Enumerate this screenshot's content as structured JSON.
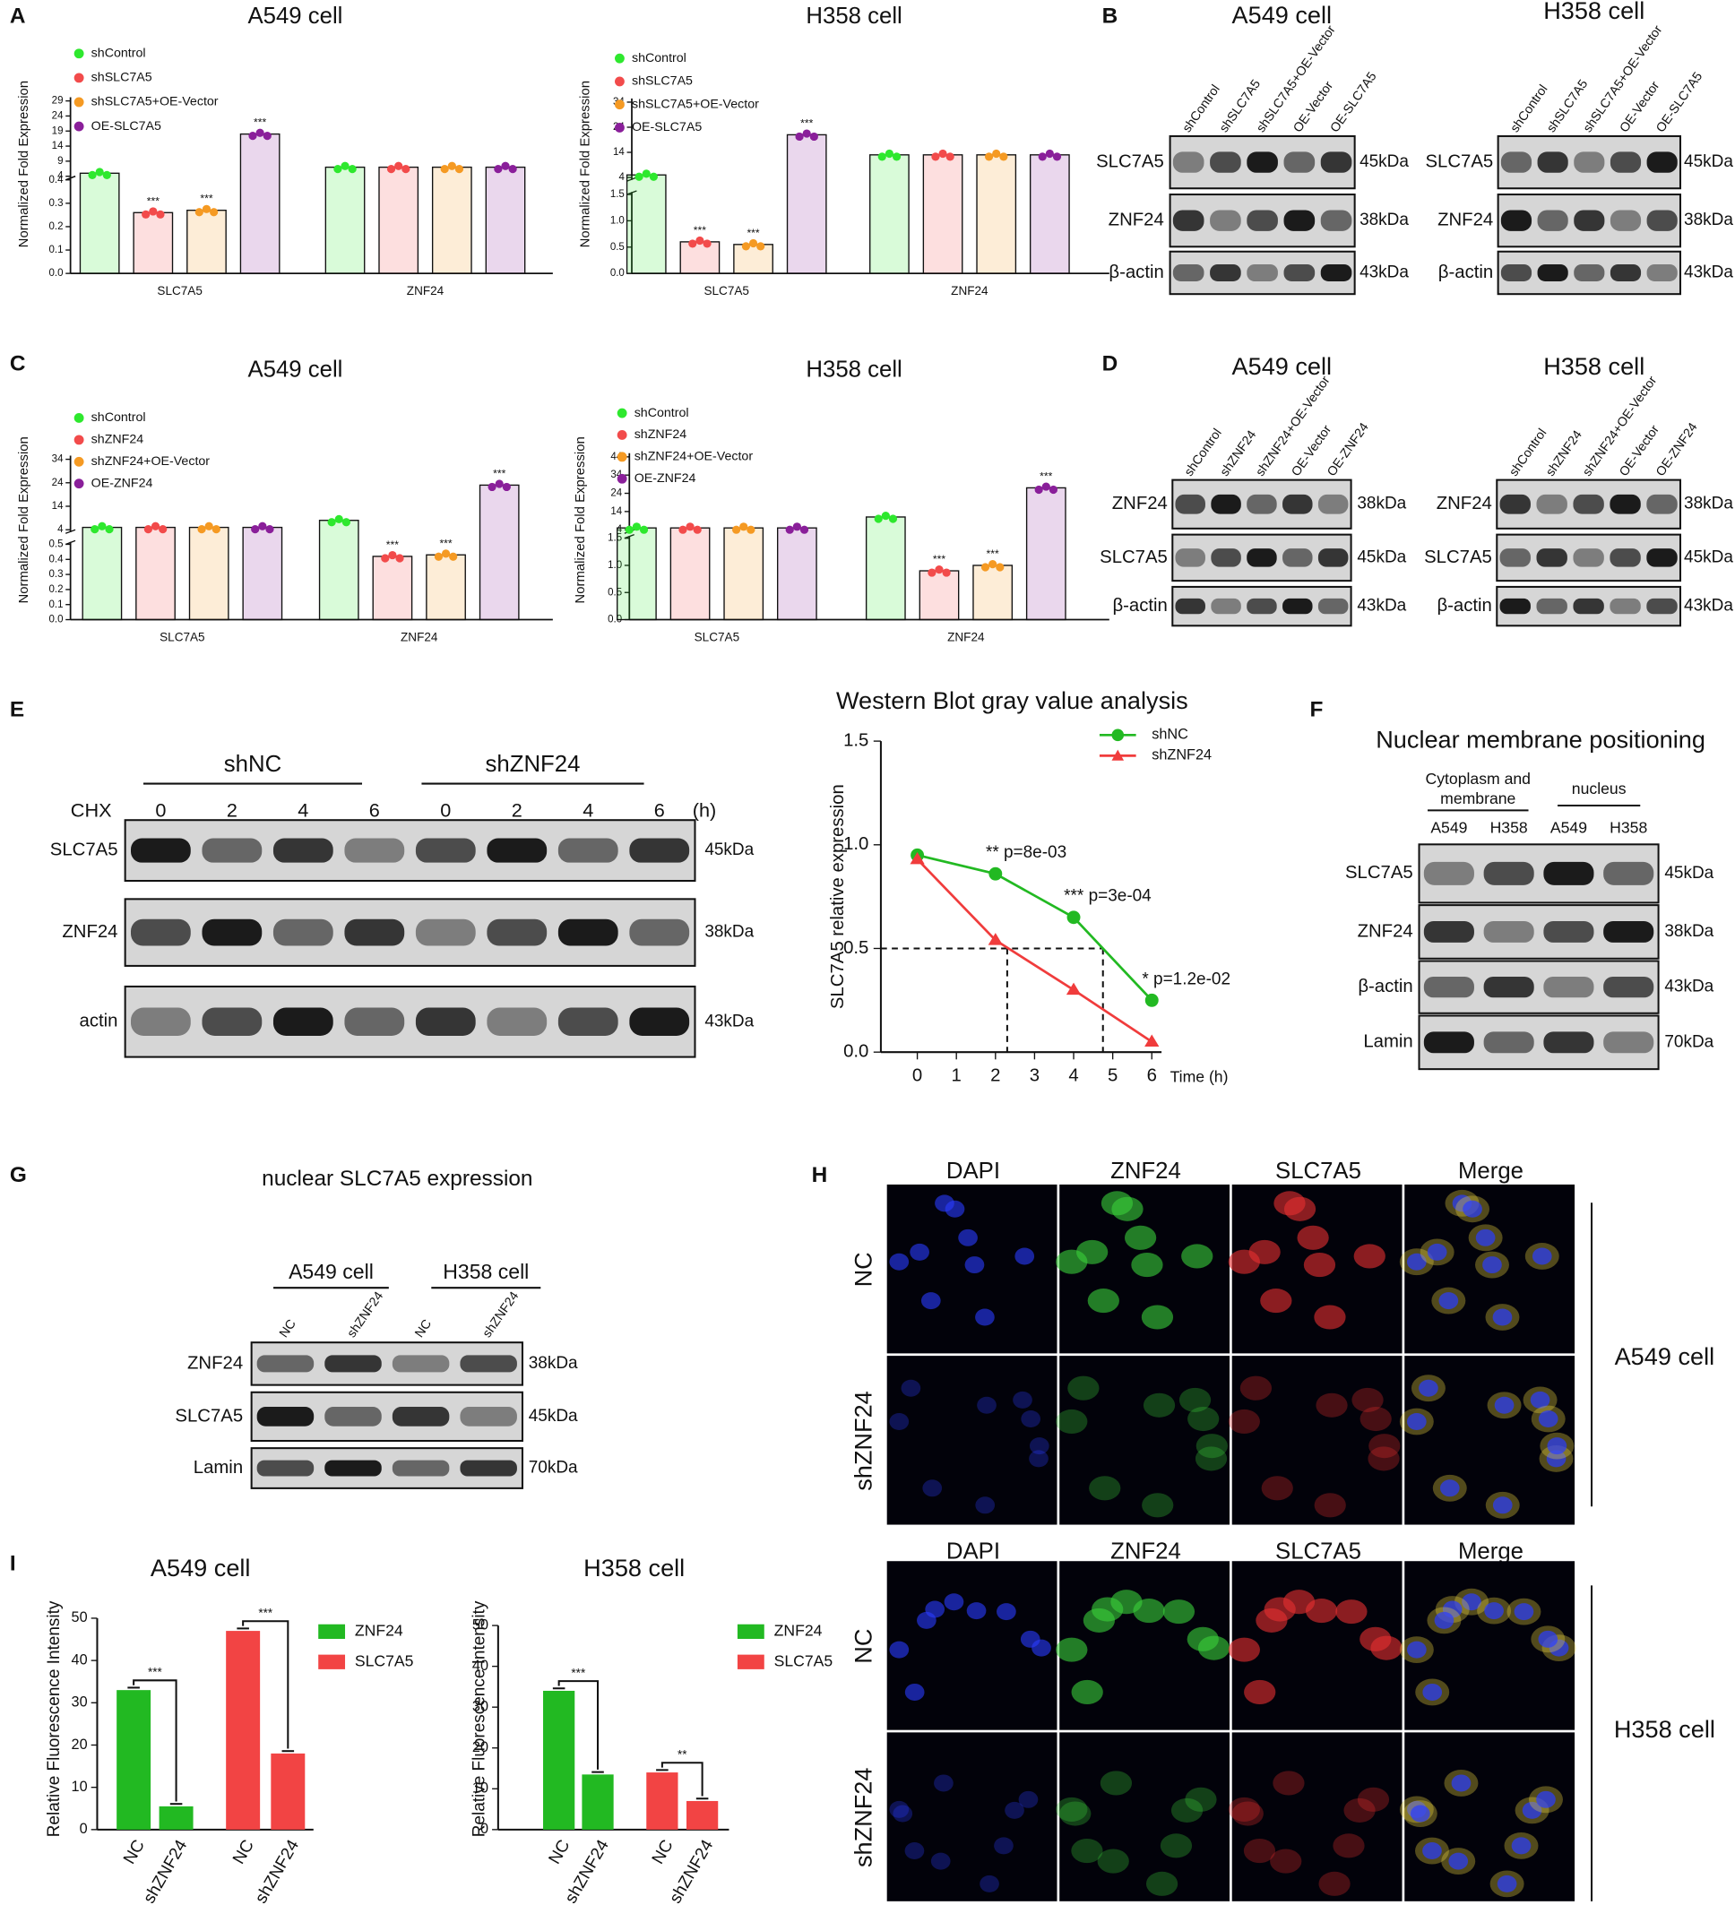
{
  "panel_labels": [
    "A",
    "B",
    "C",
    "D",
    "E",
    "F",
    "G",
    "H",
    "I"
  ],
  "chart_data": [
    {
      "type": "broken_bar",
      "title": "A549 cell",
      "ylabel": "Normalized Fold Expression",
      "categories": [
        "SLC7A5",
        "ZNF24"
      ],
      "ylim": [
        0,
        29
      ],
      "axis_break": [
        0.4,
        4
      ],
      "yticks": [
        {
          "value": 0,
          "label": "0.0"
        },
        0.1,
        0.2,
        0.3,
        0.4,
        4,
        9,
        14,
        19,
        24,
        29
      ],
      "series": [
        {
          "name": "shControl",
          "color": "#2ee82e",
          "values": [
            5,
            7
          ]
        },
        {
          "name": "shSLC7A5",
          "color": "#f24b4b",
          "values": [
            0.26,
            7
          ],
          "significance": [
            "***",
            null
          ]
        },
        {
          "name": "shSLC7A5+OE-Vector",
          "color": "#f59a23",
          "values": [
            0.27,
            7
          ],
          "significance": [
            "***",
            null
          ]
        },
        {
          "name": "OE-SLC7A5",
          "color": "#8a1f9a",
          "values": [
            18,
            7
          ],
          "significance": [
            "***",
            null
          ]
        }
      ]
    },
    {
      "type": "broken_bar",
      "title": "H358 cell",
      "ylabel": "Normalized Fold Expression",
      "categories": [
        "SLC7A5",
        "ZNF24"
      ],
      "ylim": [
        0,
        34
      ],
      "axis_break": [
        1.5,
        4
      ],
      "yticks": [
        {
          "value": 0,
          "label": "0.0"
        },
        0.5,
        {
          "value": 1,
          "label": "1.0"
        },
        1.5,
        4,
        14,
        24,
        34
      ],
      "series": [
        {
          "name": "shControl",
          "color": "#2ee82e",
          "values": [
            5,
            13
          ]
        },
        {
          "name": "shSLC7A5",
          "color": "#f24b4b",
          "values": [
            0.6,
            13
          ],
          "significance": [
            "***",
            null
          ]
        },
        {
          "name": "shSLC7A5+OE-Vector",
          "color": "#f59a23",
          "values": [
            0.55,
            13
          ],
          "significance": [
            "***",
            null
          ]
        },
        {
          "name": "OE-SLC7A5",
          "color": "#8a1f9a",
          "values": [
            21,
            13
          ],
          "significance": [
            "***",
            null
          ]
        }
      ]
    },
    {
      "type": "broken_bar",
      "title": "A549 cell",
      "ylabel": "Normalized Fold Expression",
      "categories": [
        "SLC7A5",
        "ZNF24"
      ],
      "ylim": [
        0,
        34
      ],
      "axis_break": [
        0.5,
        4
      ],
      "yticks": [
        {
          "value": 0,
          "label": "0.0"
        },
        0.1,
        0.2,
        0.3,
        0.4,
        0.5,
        4,
        14,
        24,
        34
      ],
      "series": [
        {
          "name": "shControl",
          "color": "#2ee82e",
          "values": [
            5,
            8
          ]
        },
        {
          "name": "shZNF24",
          "color": "#f24b4b",
          "values": [
            5,
            0.42
          ],
          "significance": [
            null,
            "***"
          ]
        },
        {
          "name": "shZNF24+OE-Vector",
          "color": "#f59a23",
          "values": [
            5,
            0.43
          ],
          "significance": [
            null,
            "***"
          ]
        },
        {
          "name": "OE-ZNF24",
          "color": "#8a1f9a",
          "values": [
            5,
            23
          ],
          "significance": [
            null,
            "***"
          ]
        }
      ]
    },
    {
      "type": "broken_bar",
      "title": "H358 cell",
      "ylabel": "Normalized Fold Expression",
      "categories": [
        "SLC7A5",
        "ZNF24"
      ],
      "ylim": [
        0,
        44
      ],
      "axis_break": [
        1.5,
        4
      ],
      "yticks": [
        {
          "value": 0,
          "label": "0.0"
        },
        0.5,
        {
          "value": 1,
          "label": "1.0"
        },
        1.5,
        4,
        14,
        24,
        34,
        44
      ],
      "series": [
        {
          "name": "shControl",
          "color": "#2ee82e",
          "values": [
            5,
            11
          ]
        },
        {
          "name": "shZNF24",
          "color": "#f24b4b",
          "values": [
            5,
            0.9
          ],
          "significance": [
            null,
            "***"
          ]
        },
        {
          "name": "shZNF24+OE-Vector",
          "color": "#f59a23",
          "values": [
            5,
            1.0
          ],
          "significance": [
            null,
            "***"
          ]
        },
        {
          "name": "OE-ZNF24",
          "color": "#8a1f9a",
          "values": [
            5,
            27
          ],
          "significance": [
            null,
            "***"
          ]
        }
      ]
    },
    {
      "type": "line",
      "title": "Western Blot gray value analysis",
      "ylabel": "SLC7A5 relative expression",
      "xlabel": "Time (h)",
      "x": [
        0,
        2,
        4,
        6
      ],
      "xlim": [
        0,
        6
      ],
      "xticks": [
        0,
        1,
        2,
        3,
        4,
        5,
        6
      ],
      "ylim": [
        0,
        1.5
      ],
      "yticks": [
        {
          "value": 0,
          "label": "0.0"
        },
        0.5,
        {
          "value": 1,
          "label": "1.0"
        },
        1.5
      ],
      "series": [
        {
          "name": "shNC",
          "color": "#22b922",
          "marker": "circle",
          "values": [
            0.95,
            0.86,
            0.65,
            0.25
          ],
          "annotations": [
            null,
            "** p=8e-03",
            "*** p=3e-04",
            "* p=1.2e-02"
          ]
        },
        {
          "name": "shZNF24",
          "color": "#f03c3c",
          "marker": "triangle",
          "values": [
            0.93,
            0.54,
            0.3,
            0.05
          ]
        }
      ],
      "reference_lines": {
        "y": 0.5,
        "x": [
          2.3,
          4.75
        ]
      }
    },
    {
      "type": "grouped_bar",
      "title": "A549 cell",
      "ylabel": "Relative Fluorescence Intensity",
      "categories": [
        "NC",
        "shZNF24"
      ],
      "ylim": [
        0,
        50
      ],
      "yticks": [
        0,
        10,
        20,
        30,
        40,
        50
      ],
      "series": [
        {
          "name": "ZNF24",
          "color": "#22b922",
          "values": [
            33,
            5.5
          ],
          "significance": "***"
        },
        {
          "name": "SLC7A5",
          "color": "#f24444",
          "values": [
            47,
            18
          ],
          "significance": "***"
        }
      ]
    },
    {
      "type": "grouped_bar",
      "title": "H358 cell",
      "ylabel": "Relative Fluorescence Intensity",
      "categories": [
        "NC",
        "shZNF24"
      ],
      "ylim": [
        0,
        50
      ],
      "yticks": [
        0,
        10,
        20,
        30,
        40,
        50
      ],
      "series": [
        {
          "name": "ZNF24",
          "color": "#22b922",
          "values": [
            34,
            13.5
          ],
          "significance": "***"
        },
        {
          "name": "SLC7A5",
          "color": "#f24444",
          "values": [
            14,
            7
          ],
          "significance": "**"
        }
      ]
    }
  ],
  "blots": [
    {
      "title": "A549 cell",
      "lanes": [
        "shControl",
        "shSLC7A5",
        "shSLC7A5+OE-Vector",
        "OE-Vector",
        "OE-SLC7A5"
      ],
      "rows": [
        {
          "label": "SLC7A5",
          "kda": "45kDa"
        },
        {
          "label": "ZNF24",
          "kda": "38kDa"
        },
        {
          "label": "β-actin",
          "kda": "43kDa"
        }
      ]
    },
    {
      "title": "H358 cell",
      "lanes": [
        "shControl",
        "shSLC7A5",
        "shSLC7A5+OE-Vector",
        "OE-Vector",
        "OE-SLC7A5"
      ],
      "rows": [
        {
          "label": "SLC7A5",
          "kda": "45kDa"
        },
        {
          "label": "ZNF24",
          "kda": "38kDa"
        },
        {
          "label": "β-actin",
          "kda": "43kDa"
        }
      ]
    },
    {
      "title": "A549 cell",
      "lanes": [
        "shControl",
        "shZNF24",
        "shZNF24+OE-Vector",
        "OE-Vector",
        "OE-ZNF24"
      ],
      "rows": [
        {
          "label": "ZNF24",
          "kda": "38kDa"
        },
        {
          "label": "SLC7A5",
          "kda": "45kDa"
        },
        {
          "label": "β-actin",
          "kda": "43kDa"
        }
      ]
    },
    {
      "title": "H358 cell",
      "lanes": [
        "shControl",
        "shZNF24",
        "shZNF24+OE-Vector",
        "OE-Vector",
        "OE-ZNF24"
      ],
      "rows": [
        {
          "label": "ZNF24",
          "kda": "38kDa"
        },
        {
          "label": "SLC7A5",
          "kda": "45kDa"
        },
        {
          "label": "β-actin",
          "kda": "43kDa"
        }
      ]
    },
    {
      "group_labels": [
        [
          "shNC"
        ],
        [
          "shZNF24"
        ]
      ],
      "prefix": "CHX",
      "unit": "(h)",
      "lanes": [
        "0",
        "2",
        "4",
        "6",
        "0",
        "2",
        "4",
        "6"
      ],
      "rows": [
        {
          "label": "SLC7A5",
          "kda": "45kDa"
        },
        {
          "label": "ZNF24",
          "kda": "38kDa"
        },
        {
          "label": "actin",
          "kda": "43kDa"
        }
      ]
    },
    {
      "title": "Nuclear membrane positioning",
      "group_labels": [
        [
          "Cytoplasm and",
          "membrane"
        ],
        [
          "nucleus"
        ]
      ],
      "lanes": [
        "A549",
        "H358",
        "A549",
        "H358"
      ],
      "rows": [
        {
          "label": "SLC7A5",
          "kda": "45kDa"
        },
        {
          "label": "ZNF24",
          "kda": "38kDa"
        },
        {
          "label": "β-actin",
          "kda": "43kDa"
        },
        {
          "label": "Lamin",
          "kda": "70kDa"
        }
      ]
    },
    {
      "title": "nuclear SLC7A5 expression",
      "group_labels": [
        [
          "A549 cell"
        ],
        [
          "H358 cell"
        ]
      ],
      "lanes": [
        "NC",
        "shZNF24",
        "NC",
        "shZNF24"
      ],
      "rows": [
        {
          "label": "ZNF24",
          "kda": "38kDa"
        },
        {
          "label": "SLC7A5",
          "kda": "45kDa"
        },
        {
          "label": "Lamin",
          "kda": "70kDa"
        }
      ]
    }
  ],
  "microscopy": [
    {
      "cell": "A549 cell",
      "channels": [
        "DAPI",
        "ZNF24",
        "SLC7A5",
        "Merge"
      ],
      "rows": [
        "NC",
        "shZNF24"
      ]
    },
    {
      "cell": "H358 cell",
      "channels": [
        "DAPI",
        "ZNF24",
        "SLC7A5",
        "Merge"
      ],
      "rows": [
        "NC",
        "shZNF24"
      ]
    }
  ]
}
